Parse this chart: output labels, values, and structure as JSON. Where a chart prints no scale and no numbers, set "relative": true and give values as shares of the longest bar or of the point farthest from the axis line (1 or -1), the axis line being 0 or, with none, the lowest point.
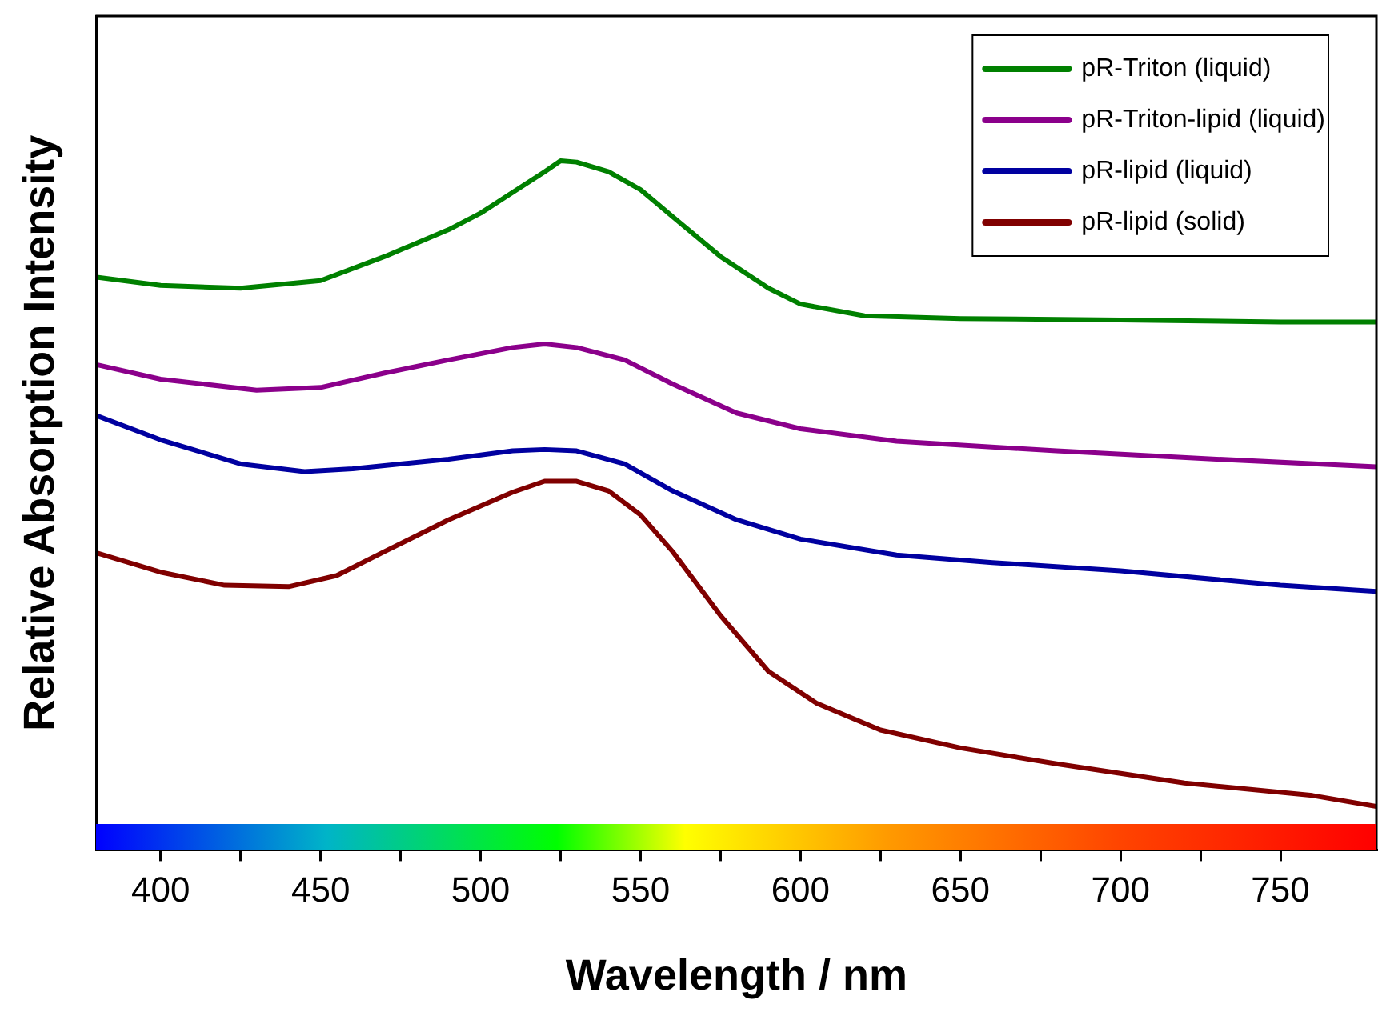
{
  "chart_data": {
    "type": "line",
    "xlabel": "Wavelength / nm",
    "ylabel": "Relative Absorption Intensity",
    "relative": true,
    "legend": "top right",
    "marker": "none",
    "line_style": "solid",
    "grid": false,
    "xlim": [
      380,
      780
    ],
    "xticks": [
      400,
      {
        "value": 425,
        "label": null
      },
      450,
      {
        "value": 475,
        "label": null
      },
      500,
      {
        "value": 525,
        "label": null
      },
      550,
      {
        "value": 575,
        "label": null
      },
      600,
      {
        "value": 625,
        "label": null
      },
      650,
      {
        "value": 675,
        "label": null
      },
      700,
      {
        "value": 725,
        "label": null
      },
      750
    ],
    "series": [
      {
        "name": "pR-Triton (liquid)",
        "color": "#008000",
        "x": [
          380,
          400,
          425,
          450,
          470,
          490,
          500,
          510,
          520,
          525,
          530,
          540,
          550,
          560,
          575,
          590,
          600,
          620,
          650,
          700,
          750,
          780
        ],
        "values": [
          0.831,
          0.819,
          0.815,
          0.826,
          0.861,
          0.9,
          0.924,
          0.954,
          0.984,
          1.0,
          0.998,
          0.984,
          0.958,
          0.919,
          0.861,
          0.815,
          0.792,
          0.775,
          0.771,
          0.769,
          0.766,
          0.766
        ]
      },
      {
        "name": "pR-Triton-lipid (liquid)",
        "color": "#8b008b",
        "x": [
          380,
          400,
          430,
          450,
          470,
          490,
          510,
          520,
          530,
          545,
          560,
          580,
          600,
          630,
          680,
          730,
          780
        ],
        "values": [
          0.704,
          0.683,
          0.667,
          0.671,
          0.692,
          0.711,
          0.729,
          0.734,
          0.729,
          0.711,
          0.676,
          0.634,
          0.611,
          0.593,
          0.579,
          0.567,
          0.556
        ]
      },
      {
        "name": "pR-lipid (liquid)",
        "color": "#0000a0",
        "x": [
          380,
          400,
          425,
          445,
          460,
          490,
          510,
          520,
          530,
          545,
          560,
          580,
          600,
          630,
          660,
          700,
          750,
          780
        ],
        "values": [
          0.63,
          0.595,
          0.56,
          0.549,
          0.553,
          0.567,
          0.579,
          0.581,
          0.579,
          0.56,
          0.521,
          0.479,
          0.451,
          0.428,
          0.417,
          0.405,
          0.384,
          0.375
        ]
      },
      {
        "name": "pR-lipid (solid)",
        "color": "#800000",
        "x": [
          380,
          400,
          420,
          440,
          455,
          470,
          490,
          510,
          520,
          530,
          540,
          550,
          560,
          575,
          590,
          605,
          625,
          650,
          680,
          720,
          760,
          780
        ],
        "values": [
          0.431,
          0.403,
          0.384,
          0.382,
          0.398,
          0.433,
          0.479,
          0.519,
          0.535,
          0.535,
          0.521,
          0.486,
          0.433,
          0.34,
          0.259,
          0.213,
          0.174,
          0.148,
          0.125,
          0.097,
          0.079,
          0.063
        ]
      }
    ]
  }
}
